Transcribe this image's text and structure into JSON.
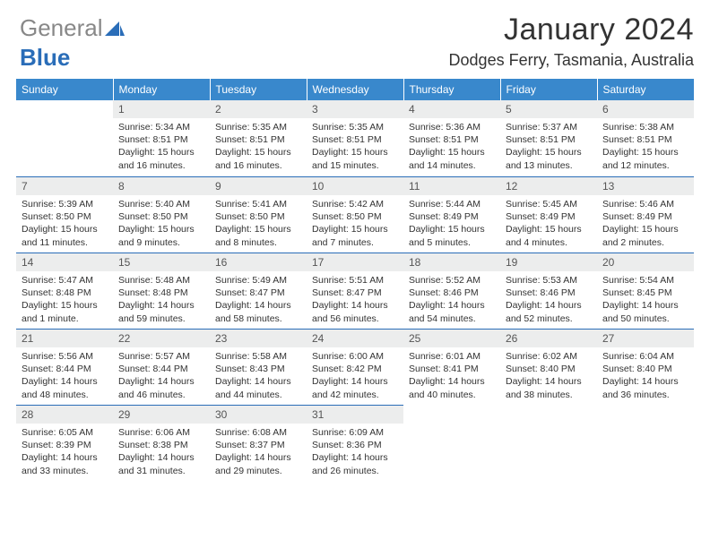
{
  "logo": {
    "text_gray": "General",
    "text_blue": "Blue"
  },
  "title": "January 2024",
  "location": "Dodges Ferry, Tasmania, Australia",
  "colors": {
    "header_bg": "#3988cc",
    "header_text": "#ffffff",
    "daynum_bg": "#eceded",
    "accent": "#2a6db8"
  },
  "dayHeaders": [
    "Sunday",
    "Monday",
    "Tuesday",
    "Wednesday",
    "Thursday",
    "Friday",
    "Saturday"
  ],
  "firstWeekday": 1,
  "daysInMonth": 31,
  "days": {
    "1": {
      "sunrise": "5:34 AM",
      "sunset": "8:51 PM",
      "daylight": "15 hours and 16 minutes."
    },
    "2": {
      "sunrise": "5:35 AM",
      "sunset": "8:51 PM",
      "daylight": "15 hours and 16 minutes."
    },
    "3": {
      "sunrise": "5:35 AM",
      "sunset": "8:51 PM",
      "daylight": "15 hours and 15 minutes."
    },
    "4": {
      "sunrise": "5:36 AM",
      "sunset": "8:51 PM",
      "daylight": "15 hours and 14 minutes."
    },
    "5": {
      "sunrise": "5:37 AM",
      "sunset": "8:51 PM",
      "daylight": "15 hours and 13 minutes."
    },
    "6": {
      "sunrise": "5:38 AM",
      "sunset": "8:51 PM",
      "daylight": "15 hours and 12 minutes."
    },
    "7": {
      "sunrise": "5:39 AM",
      "sunset": "8:50 PM",
      "daylight": "15 hours and 11 minutes."
    },
    "8": {
      "sunrise": "5:40 AM",
      "sunset": "8:50 PM",
      "daylight": "15 hours and 9 minutes."
    },
    "9": {
      "sunrise": "5:41 AM",
      "sunset": "8:50 PM",
      "daylight": "15 hours and 8 minutes."
    },
    "10": {
      "sunrise": "5:42 AM",
      "sunset": "8:50 PM",
      "daylight": "15 hours and 7 minutes."
    },
    "11": {
      "sunrise": "5:44 AM",
      "sunset": "8:49 PM",
      "daylight": "15 hours and 5 minutes."
    },
    "12": {
      "sunrise": "5:45 AM",
      "sunset": "8:49 PM",
      "daylight": "15 hours and 4 minutes."
    },
    "13": {
      "sunrise": "5:46 AM",
      "sunset": "8:49 PM",
      "daylight": "15 hours and 2 minutes."
    },
    "14": {
      "sunrise": "5:47 AM",
      "sunset": "8:48 PM",
      "daylight": "15 hours and 1 minute."
    },
    "15": {
      "sunrise": "5:48 AM",
      "sunset": "8:48 PM",
      "daylight": "14 hours and 59 minutes."
    },
    "16": {
      "sunrise": "5:49 AM",
      "sunset": "8:47 PM",
      "daylight": "14 hours and 58 minutes."
    },
    "17": {
      "sunrise": "5:51 AM",
      "sunset": "8:47 PM",
      "daylight": "14 hours and 56 minutes."
    },
    "18": {
      "sunrise": "5:52 AM",
      "sunset": "8:46 PM",
      "daylight": "14 hours and 54 minutes."
    },
    "19": {
      "sunrise": "5:53 AM",
      "sunset": "8:46 PM",
      "daylight": "14 hours and 52 minutes."
    },
    "20": {
      "sunrise": "5:54 AM",
      "sunset": "8:45 PM",
      "daylight": "14 hours and 50 minutes."
    },
    "21": {
      "sunrise": "5:56 AM",
      "sunset": "8:44 PM",
      "daylight": "14 hours and 48 minutes."
    },
    "22": {
      "sunrise": "5:57 AM",
      "sunset": "8:44 PM",
      "daylight": "14 hours and 46 minutes."
    },
    "23": {
      "sunrise": "5:58 AM",
      "sunset": "8:43 PM",
      "daylight": "14 hours and 44 minutes."
    },
    "24": {
      "sunrise": "6:00 AM",
      "sunset": "8:42 PM",
      "daylight": "14 hours and 42 minutes."
    },
    "25": {
      "sunrise": "6:01 AM",
      "sunset": "8:41 PM",
      "daylight": "14 hours and 40 minutes."
    },
    "26": {
      "sunrise": "6:02 AM",
      "sunset": "8:40 PM",
      "daylight": "14 hours and 38 minutes."
    },
    "27": {
      "sunrise": "6:04 AM",
      "sunset": "8:40 PM",
      "daylight": "14 hours and 36 minutes."
    },
    "28": {
      "sunrise": "6:05 AM",
      "sunset": "8:39 PM",
      "daylight": "14 hours and 33 minutes."
    },
    "29": {
      "sunrise": "6:06 AM",
      "sunset": "8:38 PM",
      "daylight": "14 hours and 31 minutes."
    },
    "30": {
      "sunrise": "6:08 AM",
      "sunset": "8:37 PM",
      "daylight": "14 hours and 29 minutes."
    },
    "31": {
      "sunrise": "6:09 AM",
      "sunset": "8:36 PM",
      "daylight": "14 hours and 26 minutes."
    }
  },
  "labels": {
    "sunrise": "Sunrise:",
    "sunset": "Sunset:",
    "daylight": "Daylight:"
  }
}
